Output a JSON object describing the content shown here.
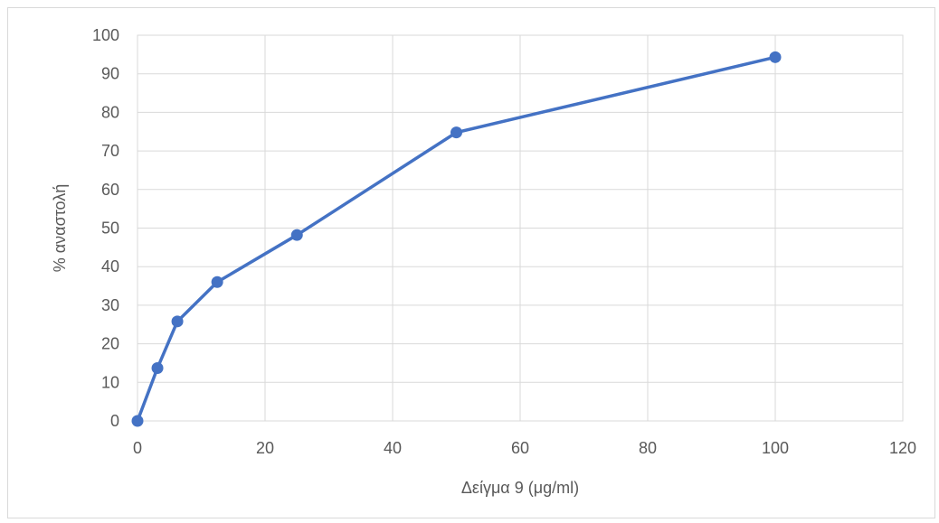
{
  "chart_data": {
    "type": "line",
    "title": "",
    "xlabel": "Δείγμα 9 (μg/ml)",
    "ylabel": "% αναστολή",
    "xlim": [
      0,
      120
    ],
    "ylim": [
      0,
      100
    ],
    "x_ticks": [
      "0",
      "20",
      "40",
      "60",
      "80",
      "100",
      "120"
    ],
    "y_ticks": [
      "0",
      "10",
      "20",
      "30",
      "40",
      "50",
      "60",
      "70",
      "80",
      "90",
      "100"
    ],
    "grid": true,
    "legend": "none",
    "series": [
      {
        "color": "#4472c4",
        "marker": "circle",
        "x": [
          0,
          3.125,
          6.25,
          12.5,
          25,
          50,
          100
        ],
        "y": [
          0,
          13.7,
          25.8,
          36.0,
          48.2,
          74.8,
          94.3
        ]
      }
    ]
  }
}
